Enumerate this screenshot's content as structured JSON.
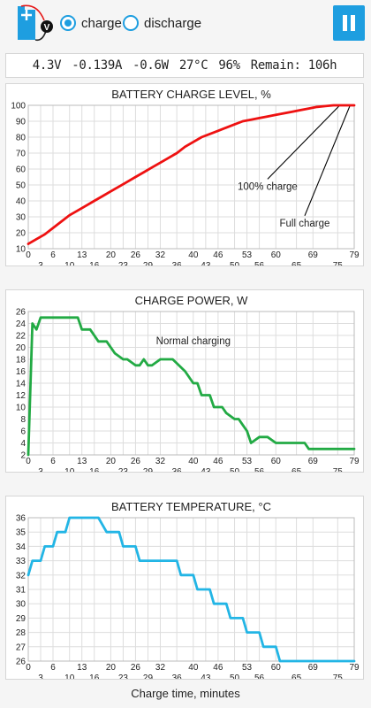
{
  "header": {
    "icon": "battery-voltmeter-icon",
    "mode_options": [
      {
        "label": "charge",
        "selected": true
      },
      {
        "label": "discharge",
        "selected": false
      }
    ],
    "pause_icon": "pause-icon",
    "accent_color": "#1e9ee0"
  },
  "status": {
    "voltage": "4.3V",
    "current": "-0.139A",
    "power": "-0.6W",
    "temperature": "27°C",
    "level": "96%",
    "remaining": "Remain: 106h"
  },
  "x_axis_label": "Charge time, minutes",
  "chart_data": [
    {
      "type": "line",
      "title": "BATTERY CHARGE LEVEL, %",
      "color": "#ee1111",
      "xticks": [
        0,
        3,
        6,
        10,
        13,
        16,
        20,
        23,
        26,
        29,
        32,
        36,
        40,
        43,
        46,
        50,
        53,
        56,
        60,
        65,
        69,
        75,
        79
      ],
      "ylim": [
        10,
        100
      ],
      "yticks": [
        10,
        20,
        30,
        40,
        50,
        60,
        70,
        80,
        90,
        100
      ],
      "x": [
        0,
        2,
        4,
        6,
        8,
        10,
        12,
        14,
        16,
        18,
        20,
        22,
        24,
        26,
        28,
        30,
        32,
        34,
        36,
        38,
        40,
        42,
        44,
        46,
        48,
        50,
        52,
        54,
        56,
        58,
        60,
        62,
        64,
        66,
        68,
        70,
        72,
        74,
        76,
        79
      ],
      "y": [
        13,
        16,
        19,
        23,
        27,
        31,
        34,
        37,
        40,
        43,
        46,
        49,
        52,
        55,
        58,
        61,
        64,
        67,
        70,
        74,
        77,
        80,
        82,
        84,
        86,
        88,
        90,
        91,
        92,
        93,
        94,
        95,
        96,
        97,
        98,
        99,
        99.5,
        100,
        100,
        100
      ],
      "annotations": [
        {
          "text": "100% charge",
          "x": 58,
          "y": 47,
          "to_x": 75.5,
          "to_y": 100
        },
        {
          "text": "Full charge",
          "x": 67,
          "y": 24,
          "to_x": 78,
          "to_y": 100
        }
      ]
    },
    {
      "type": "line",
      "title": "CHARGE POWER, W",
      "color": "#22aa44",
      "xticks": [
        0,
        3,
        6,
        10,
        13,
        16,
        20,
        23,
        26,
        29,
        32,
        36,
        40,
        43,
        46,
        50,
        53,
        56,
        60,
        65,
        69,
        75,
        79
      ],
      "ylim": [
        2,
        26
      ],
      "yticks": [
        2,
        4,
        6,
        8,
        10,
        12,
        14,
        16,
        18,
        20,
        22,
        24,
        26
      ],
      "x": [
        0,
        1,
        2,
        3,
        4,
        8,
        12,
        13,
        15,
        17,
        19,
        21,
        23,
        24,
        26,
        27,
        28,
        29,
        30,
        32,
        35,
        38,
        40,
        41,
        42,
        44,
        45,
        47,
        48,
        50,
        51,
        52,
        53,
        54,
        56,
        58,
        60,
        62,
        65,
        67,
        68,
        70,
        73,
        76,
        79
      ],
      "y": [
        2,
        24,
        23,
        25,
        25,
        25,
        25,
        23,
        23,
        21,
        21,
        19,
        18,
        18,
        17,
        17,
        18,
        17,
        17,
        18,
        18,
        16,
        14,
        14,
        12,
        12,
        10,
        10,
        9,
        8,
        8,
        7,
        6,
        4,
        5,
        5,
        4,
        4,
        4,
        4,
        3,
        3,
        3,
        3,
        3
      ],
      "annotations": [
        {
          "text": "Normal charging",
          "x": 40,
          "y": 20.5
        }
      ]
    },
    {
      "type": "line",
      "title": "BATTERY TEMPERATURE, °C",
      "color": "#22b5e5",
      "xticks": [
        0,
        3,
        6,
        10,
        13,
        16,
        20,
        23,
        26,
        29,
        32,
        36,
        40,
        43,
        46,
        50,
        53,
        56,
        60,
        65,
        69,
        75,
        79
      ],
      "ylim": [
        26,
        36
      ],
      "yticks": [
        26,
        27,
        28,
        29,
        30,
        31,
        32,
        33,
        34,
        35,
        36
      ],
      "x": [
        0,
        1,
        3,
        4,
        6,
        7,
        9,
        10,
        11,
        12,
        15,
        17,
        19,
        20,
        22,
        23,
        26,
        27,
        28,
        32,
        36,
        37,
        40,
        41,
        44,
        45,
        48,
        49,
        52,
        53,
        56,
        57,
        60,
        61,
        64,
        65,
        69,
        72,
        79
      ],
      "y": [
        32,
        33,
        33,
        34,
        34,
        35,
        35,
        36,
        36,
        36,
        36,
        36,
        35,
        35,
        35,
        34,
        34,
        33,
        33,
        33,
        33,
        32,
        32,
        31,
        31,
        30,
        30,
        29,
        29,
        28,
        28,
        27,
        27,
        26,
        26,
        26,
        26,
        26,
        26
      ]
    }
  ]
}
